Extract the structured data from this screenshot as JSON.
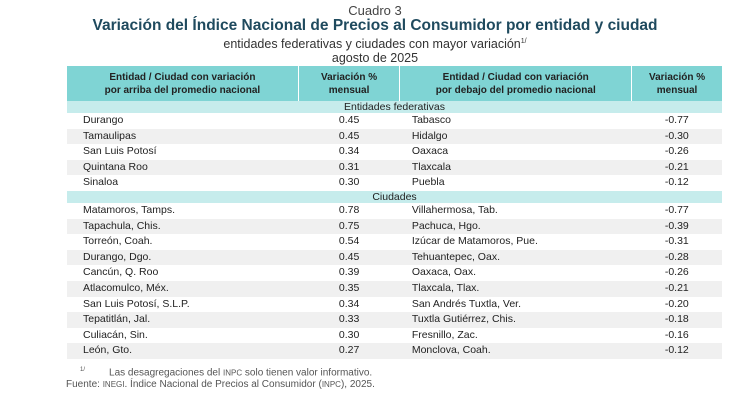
{
  "header": {
    "cuadro": "Cuadro 3",
    "title": "Variación del Índice Nacional de Precios al Consumidor por entidad y ciudad",
    "subtitle": "entidades federativas y ciudades con mayor variación",
    "subtitle_note": "1/",
    "date": "agosto de 2025"
  },
  "columns": {
    "c1a": "Entidad / Ciudad con variación",
    "c1b": "por arriba del promedio nacional",
    "c2a": "Variación %",
    "c2b": "mensual",
    "c3a": "Entidad / Ciudad con variación",
    "c3b": "por debajo del promedio nacional",
    "c4a": "Variación %",
    "c4b": "mensual"
  },
  "sections": [
    {
      "label": "Entidades federativas",
      "rows": [
        [
          "Durango",
          "0.45",
          "Tabasco",
          "-0.77"
        ],
        [
          "Tamaulipas",
          "0.45",
          "Hidalgo",
          "-0.30"
        ],
        [
          "San Luis Potosí",
          "0.34",
          "Oaxaca",
          "-0.26"
        ],
        [
          "Quintana Roo",
          "0.31",
          "Tlaxcala",
          "-0.21"
        ],
        [
          "Sinaloa",
          "0.30",
          "Puebla",
          "-0.12"
        ]
      ]
    },
    {
      "label": "Ciudades",
      "rows": [
        [
          "Matamoros, Tamps.",
          "0.78",
          "Villahermosa, Tab.",
          "-0.77"
        ],
        [
          "Tapachula, Chis.",
          "0.75",
          "Pachuca, Hgo.",
          "-0.39"
        ],
        [
          "Torreón, Coah.",
          "0.54",
          "Izúcar de Matamoros, Pue.",
          "-0.31"
        ],
        [
          "Durango, Dgo.",
          "0.45",
          "Tehuantepec, Oax.",
          "-0.28"
        ],
        [
          "Cancún, Q. Roo",
          "0.39",
          "Oaxaca, Oax.",
          "-0.26"
        ],
        [
          "Atlacomulco, Méx.",
          "0.35",
          "Tlaxcala, Tlax.",
          "-0.21"
        ],
        [
          "San Luis Potosí, S.L.P.",
          "0.34",
          "San Andrés Tuxtla, Ver.",
          "-0.20"
        ],
        [
          "Tepatitlán, Jal.",
          "0.33",
          "Tuxtla Gutiérrez, Chis.",
          "-0.18"
        ],
        [
          "Culiacán, Sin.",
          "0.30",
          "Fresnillo, Zac.",
          "-0.16"
        ],
        [
          "León, Gto.",
          "0.27",
          "Monclova, Coah.",
          "-0.12"
        ]
      ]
    }
  ],
  "notes": {
    "mark": "1/",
    "note1a": "Las desagregaciones del",
    "inpc": "INPC",
    "note1b": "solo tienen valor informativo.",
    "fuente": "Fuente:",
    "inegi": "INEGI",
    "note2a": ". Índice Nacional de Precios al Consumidor (",
    "note2b": "), 2025."
  }
}
